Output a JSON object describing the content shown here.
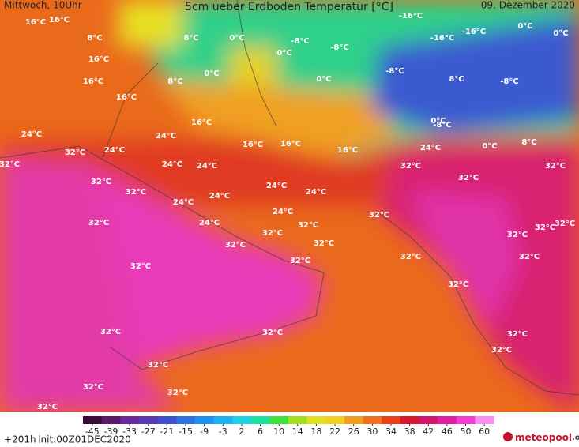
{
  "header": {
    "left": "Mittwoch, 10Uhr",
    "title": "5cm ueber Erdboden Temperatur [°C]",
    "date": "09. Dezember 2020"
  },
  "map": {
    "labels": [
      "16°C",
      "16°C",
      "8°C",
      "8°C",
      "0°C",
      "0°C",
      "-8°C",
      "-8°C",
      "-16°C",
      "-16°C",
      "-16°C",
      "0°C",
      "0°C",
      "16°C",
      "16°C",
      "16°C",
      "8°C",
      "0°C",
      "0°C",
      "-8°C",
      "8°C",
      "-8°C",
      "16°C",
      "16°C",
      "16°C",
      "16°C",
      "24°C",
      "24°C",
      "24°C",
      "32°C",
      "32°C",
      "24°C",
      "24°C",
      "32°C",
      "32°C",
      "24°C",
      "24°C",
      "24°C",
      "24°C",
      "32°C",
      "32°C",
      "32°C",
      "24°C",
      "24°C",
      "24°C",
      "32°C",
      "32°C",
      "32°C",
      "32°C",
      "32°C",
      "32°C",
      "32°C",
      "32°C",
      "32°C",
      "32°C",
      "32°C",
      "32°C",
      "32°C",
      "32°C",
      "32°C",
      "32°C",
      "32°C",
      "32°C",
      "32°C",
      "32°C",
      "32°C",
      "32°C",
      "8°C",
      "0°C",
      "0°C",
      "-8°C"
    ]
  },
  "colorbar": {
    "ticks": [
      -45,
      -39,
      -33,
      -27,
      -21,
      -15,
      -9,
      -3,
      2,
      6,
      10,
      14,
      18,
      22,
      26,
      30,
      34,
      38,
      42,
      46,
      50,
      60
    ],
    "colors": [
      "#3a0a3a",
      "#5a1a6a",
      "#6a2a9a",
      "#5a3ab0",
      "#4050c8",
      "#3070e0",
      "#2090f0",
      "#20b0f0",
      "#20d0e0",
      "#20e0a0",
      "#40e040",
      "#a0e020",
      "#e0e020",
      "#f0d020",
      "#f0a020",
      "#f07020",
      "#e84018",
      "#d81830",
      "#d01868",
      "#e020a0",
      "#f040d0",
      "#f890f0"
    ]
  },
  "footer": {
    "run": "+201h",
    "init": "Init:00Z01DEC2020"
  },
  "logo": {
    "name": "meteopool",
    "tld": ".org"
  }
}
